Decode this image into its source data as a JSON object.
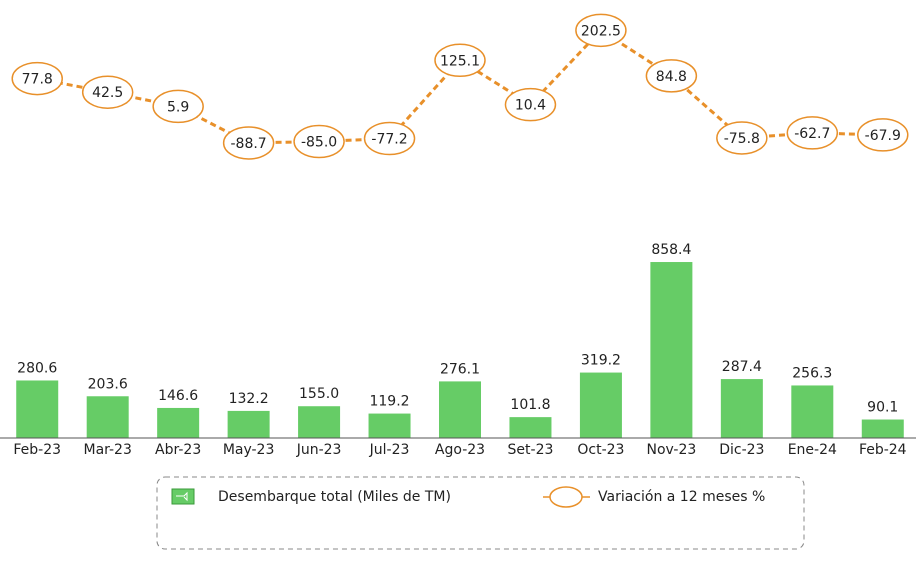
{
  "chart_data": {
    "type": "bar",
    "categories": [
      "Feb-23",
      "Mar-23",
      "Abr-23",
      "May-23",
      "Jun-23",
      "Jul-23",
      "Ago-23",
      "Set-23",
      "Oct-23",
      "Nov-23",
      "Dic-23",
      "Ene-24",
      "Feb-24"
    ],
    "series": [
      {
        "name": "Desembarque total (Miles de TM)",
        "type": "bar",
        "color": "#66cc66",
        "values": [
          280.6,
          203.6,
          146.6,
          132.2,
          155.0,
          119.2,
          276.1,
          101.8,
          319.2,
          858.4,
          287.4,
          256.3,
          90.1
        ],
        "value_labels": [
          "280.6",
          "203.6",
          "146.6",
          "132.2",
          "155.0",
          "119.2",
          "276.1",
          "101.8",
          "319.2",
          "858.4",
          "287.4",
          "256.3",
          "90.1"
        ]
      },
      {
        "name": "Variación a 12 meses %",
        "type": "line",
        "axis": "y2",
        "color": "#e8902a",
        "values": [
          77.8,
          42.5,
          5.9,
          -88.7,
          -85.0,
          -77.2,
          125.1,
          10.4,
          202.5,
          84.8,
          -75.8,
          -62.7,
          -67.9
        ],
        "value_labels": [
          "77.8",
          "42.5",
          "5.9",
          "-88.7",
          "-85.0",
          "-77.2",
          "125.1",
          "10.4",
          "202.5",
          "84.8",
          "-75.8",
          "-62.7",
          "-67.9"
        ]
      }
    ],
    "ylim": [
      0,
      1000
    ],
    "y2lim": [
      -200,
      250
    ]
  }
}
